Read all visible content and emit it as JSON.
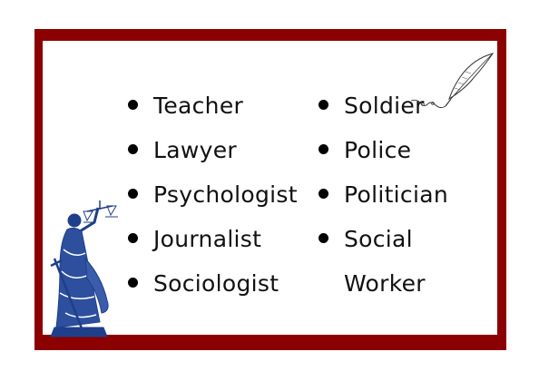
{
  "list": {
    "left": [
      "Teacher",
      "Lawyer",
      "Psychologist",
      "Journalist",
      "Sociologist"
    ],
    "right": [
      "Soldier",
      "Police",
      "Politician",
      "Social",
      "Worker"
    ]
  },
  "colors": {
    "frame": "#8b0000",
    "illustration": "#1f3f8a"
  },
  "icons": [
    "lady-justice-illustration",
    "quill-icon"
  ]
}
